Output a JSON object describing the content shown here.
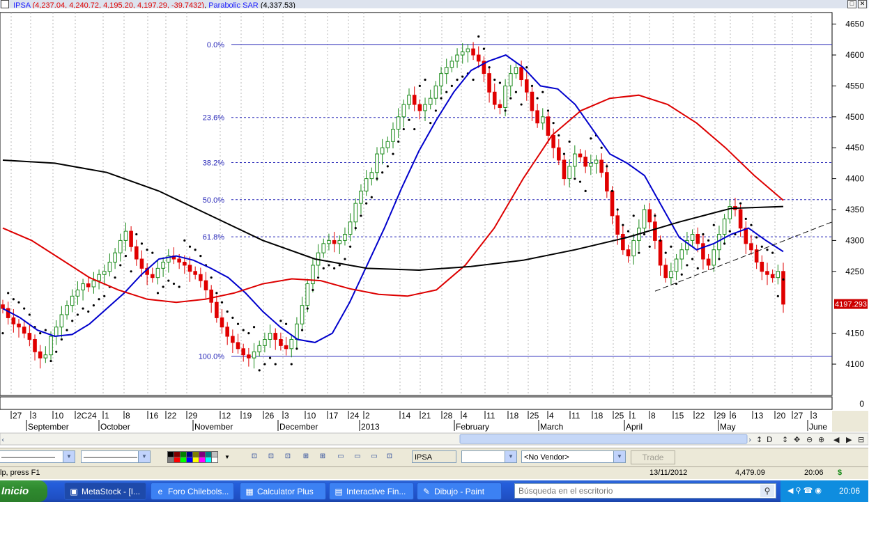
{
  "title": {
    "symbol": "IPSA",
    "ohlc": "(4,237.04, 4,240.72, 4,195.20, 4,197.29, -39.7432)",
    "indicator": "Parabolic SAR",
    "indicator_value": "(4,337.53)"
  },
  "window_buttons": [
    "□",
    "✕"
  ],
  "chart_data": {
    "type": "line",
    "y_ticks": [
      "4650",
      "4600",
      "4550",
      "4500",
      "4450",
      "4400",
      "4350",
      "4300",
      "4250",
      "4150",
      "4100"
    ],
    "y_tick_values": [
      4650,
      4600,
      4550,
      4500,
      4450,
      4400,
      4350,
      4300,
      4250,
      4150,
      4100
    ],
    "volume_tick": "0",
    "last_price_label": "4197.293",
    "last_price": 4197.293,
    "fib_levels": [
      {
        "label": "0.0%",
        "value": 4617,
        "style": "solid"
      },
      {
        "label": "23.6%",
        "value": 4499,
        "style": "dashed"
      },
      {
        "label": "38.2%",
        "value": 4426,
        "style": "dashed"
      },
      {
        "label": "50.0%",
        "value": 4366,
        "style": "dashed"
      },
      {
        "label": "61.8%",
        "value": 4306,
        "style": "dashed"
      },
      {
        "label": "100.0%",
        "value": 4113,
        "style": "solid"
      }
    ],
    "x_day_labels": [
      "27",
      "3",
      "10",
      "2C24",
      "1",
      "8",
      "16",
      "22",
      "29",
      "12",
      "19",
      "26",
      "3",
      "10",
      "17",
      "24",
      "2",
      "14",
      "21",
      "28",
      "4",
      "11",
      "18",
      "25",
      "4",
      "11",
      "18",
      "25",
      "1",
      "8",
      "15",
      "22",
      "29",
      "6",
      "13",
      "20",
      "27",
      "3"
    ],
    "x_month_labels": [
      "September",
      "October",
      "November",
      "December",
      "2013",
      "February",
      "March",
      "April",
      "May",
      "June"
    ],
    "closes": [
      4190,
      4175,
      4165,
      4160,
      4150,
      4140,
      4120,
      4110,
      4115,
      4145,
      4160,
      4180,
      4195,
      4210,
      4220,
      4230,
      4225,
      4235,
      4245,
      4250,
      4265,
      4280,
      4300,
      4315,
      4290,
      4270,
      4255,
      4245,
      4240,
      4255,
      4265,
      4275,
      4270,
      4265,
      4260,
      4250,
      4245,
      4235,
      4220,
      4200,
      4175,
      4160,
      4145,
      4135,
      4125,
      4115,
      4110,
      4120,
      4130,
      4140,
      4150,
      4140,
      4130,
      4125,
      4140,
      4165,
      4195,
      4230,
      4260,
      4280,
      4295,
      4300,
      4295,
      4300,
      4310,
      4330,
      4360,
      4380,
      4400,
      4410,
      4440,
      4450,
      4460,
      4480,
      4500,
      4520,
      4535,
      4520,
      4510,
      4520,
      4530,
      4550,
      4570,
      4580,
      4590,
      4600,
      4605,
      4610,
      4600,
      4590,
      4570,
      4540,
      4520,
      4515,
      4550,
      4570,
      4580,
      4560,
      4540,
      4510,
      4490,
      4500,
      4470,
      4450,
      4430,
      4400,
      4420,
      4440,
      4435,
      4420,
      4425,
      4430,
      4410,
      4380,
      4340,
      4310,
      4285,
      4275,
      4300,
      4320,
      4350,
      4330,
      4300,
      4260,
      4240,
      4250,
      4270,
      4285,
      4300,
      4310,
      4295,
      4270,
      4260,
      4285,
      4310,
      4335,
      4355,
      4350,
      4320,
      4295,
      4285,
      4265,
      4250,
      4245,
      4240,
      4250,
      4197
    ],
    "series": [
      {
        "name": "Moving average (blue)",
        "color": "#0000cc",
        "points": [
          4190,
          4175,
          4155,
          4145,
          4148,
          4165,
          4190,
          4215,
          4245,
          4270,
          4275,
          4268,
          4255,
          4240,
          4215,
          4185,
          4160,
          4140,
          4135,
          4150,
          4200,
          4260,
          4320,
          4385,
          4445,
          4495,
          4540,
          4575,
          4590,
          4600,
          4580,
          4550,
          4545,
          4520,
          4480,
          4440,
          4425,
          4405,
          4355,
          4305,
          4285,
          4295,
          4310,
          4320,
          4300,
          4282
        ]
      },
      {
        "name": "Moving average (red)",
        "color": "#dd0000",
        "points": [
          4320,
          4300,
          4270,
          4240,
          4220,
          4205,
          4200,
          4205,
          4215,
          4230,
          4238,
          4235,
          4222,
          4213,
          4210,
          4220,
          4260,
          4320,
          4400,
          4470,
          4510,
          4530,
          4535,
          4520,
          4490,
          4450,
          4405,
          4365
        ]
      },
      {
        "name": "Moving average (black)",
        "color": "#000000",
        "points": [
          4430,
          4425,
          4410,
          4380,
          4340,
          4300,
          4270,
          4255,
          4252,
          4258,
          4268,
          4285,
          4305,
          4330,
          4352,
          4355
        ]
      }
    ],
    "sar_dots": "alternating above/below price",
    "trendline": {
      "from": [
        4218,
        "mid-April"
      ],
      "to": [
        4330,
        "end-May"
      ],
      "style": "dashed"
    }
  },
  "toolbar": {
    "symbol_field": "IPSA",
    "period_field": "",
    "vendor_field": "<No Vendor>",
    "trade_label": "Trade",
    "nav_icons": [
      "↕",
      "D",
      "↕",
      "✥",
      "⊖",
      "⊕",
      "◀",
      "▶",
      "⊟"
    ]
  },
  "status": {
    "help": "lp, press F1",
    "date": "13/11/2012",
    "value": "4,479.09",
    "time": "20:06",
    "dollar": "$"
  },
  "taskbar": {
    "start": "Inicio",
    "items": [
      {
        "label": "MetaStock - [I...",
        "icon": "▣"
      },
      {
        "label": "Foro Chilebols...",
        "icon": "e"
      },
      {
        "label": "Calculator Plus",
        "icon": "▦"
      },
      {
        "label": "Interactive Fin...",
        "icon": "▤"
      },
      {
        "label": "Dibujo - Paint",
        "icon": "✎"
      }
    ],
    "search_placeholder": "Búsqueda en el escritorio",
    "clock": "20:06"
  }
}
